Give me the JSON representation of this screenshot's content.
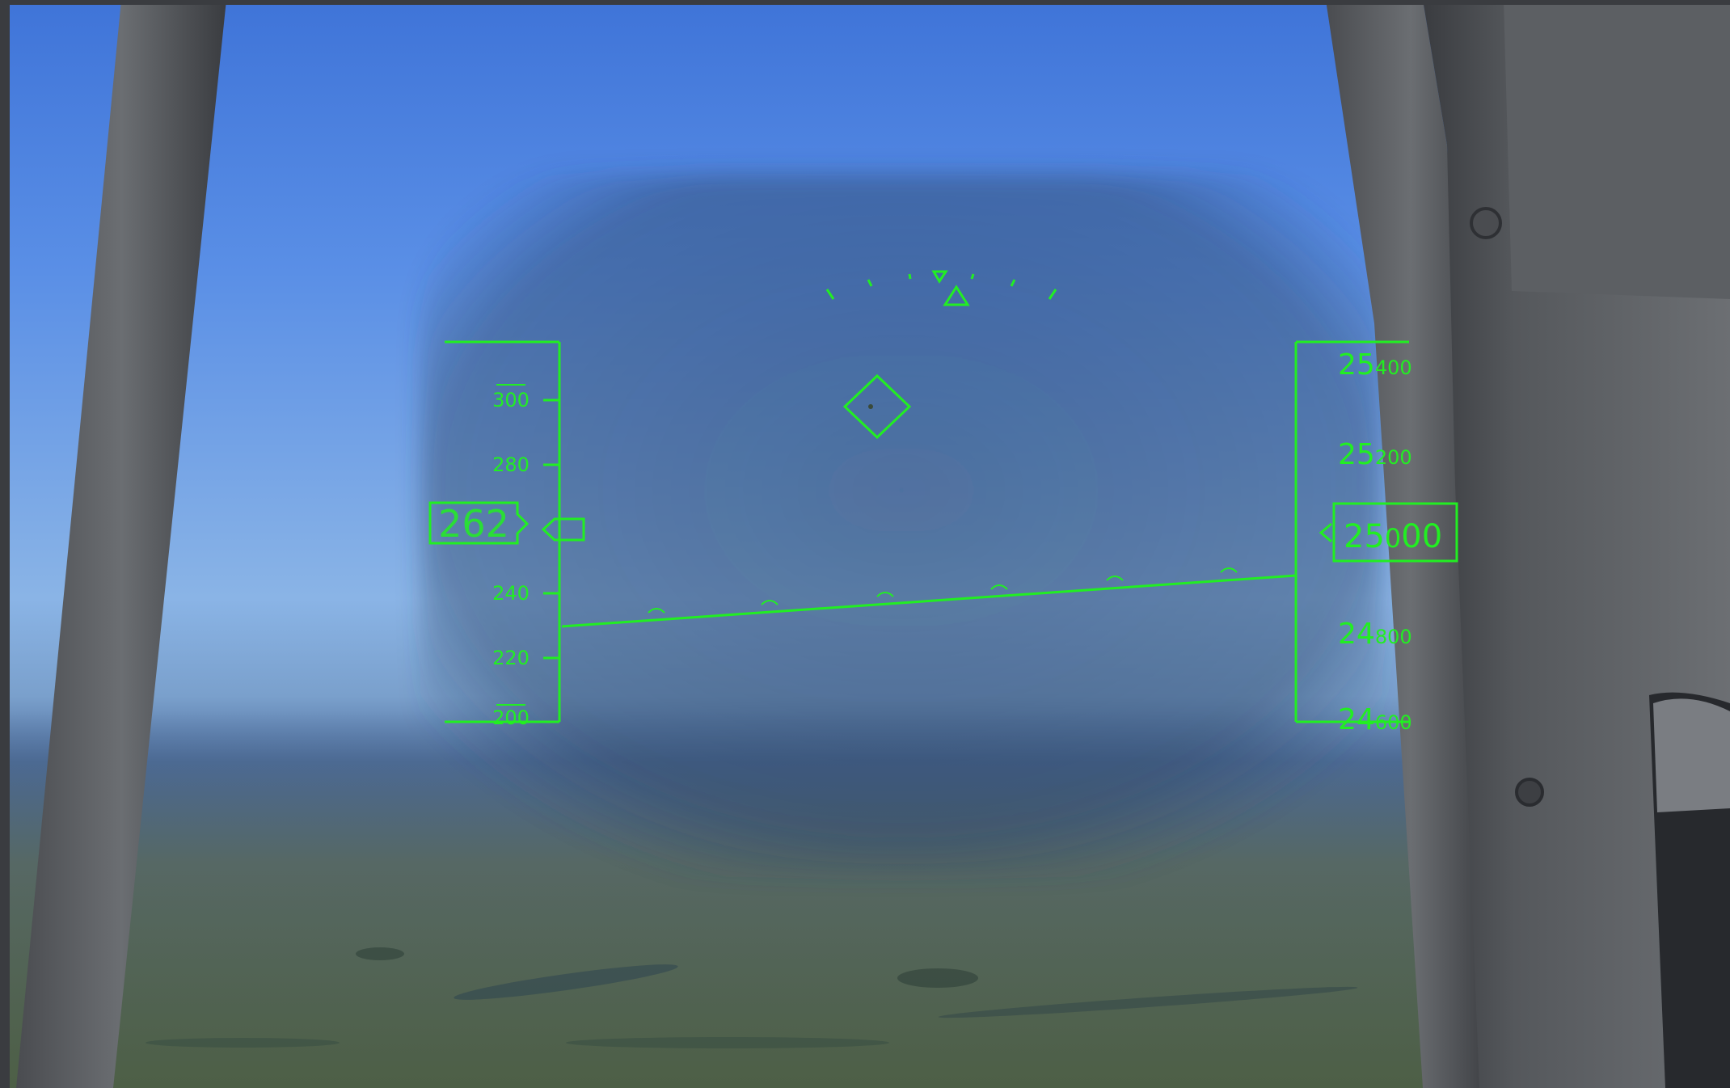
{
  "hud": {
    "color": "#22ee22",
    "airspeed_tape": {
      "ticks": [
        "300",
        "280",
        "240",
        "220",
        "200"
      ],
      "current": "262"
    },
    "altitude_tape": {
      "ticks": [
        {
          "major": "25",
          "minor": "400"
        },
        {
          "major": "25",
          "minor": "200"
        },
        {
          "major": "24",
          "minor": "800"
        },
        {
          "major": "24",
          "minor": "600"
        }
      ],
      "current_major": "25",
      "current_mid": "0",
      "current_minor": "00"
    }
  }
}
